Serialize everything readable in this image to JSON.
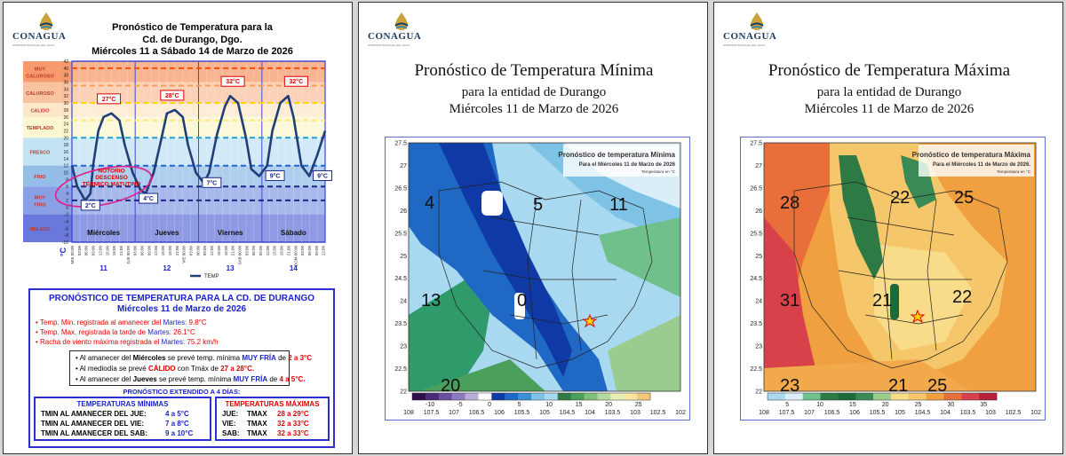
{
  "brand": {
    "name": "CONAGUA",
    "subtitle": "COMISIÓN NACIONAL DEL AGUA"
  },
  "panel1": {
    "title": [
      "Pronóstico  de Temperatura para la",
      "Cd. de Durango, Dgo.",
      "Miércoles 11 a Sábado 14 de Marzo de 2026"
    ],
    "categories": [
      {
        "label": "MUY CALUROSO",
        "color": "#f79b6e"
      },
      {
        "label": "CALUROSO",
        "color": "#f9c3a0"
      },
      {
        "label": "CALIDO",
        "color": "#fde7c8"
      },
      {
        "label": "TEMPLADO",
        "color": "#fbf7cf"
      },
      {
        "label": "FRESCO",
        "color": "#c3e3f5"
      },
      {
        "label": "FRIO",
        "color": "#94bde8"
      },
      {
        "label": "MUY FRIO",
        "color": "#8aa0e4"
      },
      {
        "label": "HELADO",
        "color": "#6a78db"
      }
    ],
    "annotation": "NOTORIO DESCENSO TÉRMICO MATUTINO",
    "legend": "TEMP",
    "legend_color": "#1f3f77",
    "chart_data": {
      "type": "line",
      "title": "Pronóstico  de Temperatura para la Cd. de Durango, Dgo.",
      "ylabel": "°C",
      "ylim": [
        -10,
        42
      ],
      "yticks": [
        42,
        40,
        38,
        36,
        34,
        32,
        30,
        28,
        26,
        24,
        22,
        20,
        18,
        16,
        14,
        12,
        10,
        8,
        6,
        4,
        2,
        0,
        -2,
        -4,
        -6,
        -8,
        -10
      ],
      "xlabels": [
        "MIE 00:00",
        "03:00",
        "06:00",
        "09:00",
        "12:00",
        "15:00",
        "18:00",
        "21:00",
        "JUE 00:00",
        "03:00",
        "06:00",
        "09:00",
        "12:00",
        "15:00",
        "18:00",
        "21:00",
        "VIE 00:00",
        "03:00",
        "06:00",
        "09:00",
        "12:00",
        "15:00",
        "18:00",
        "21:00",
        "SAB 00:00",
        "03:00",
        "06:00",
        "09:00",
        "12:00",
        "15:00",
        "18:00",
        "21:00",
        "DOM 00:00",
        "03:00",
        "06:00",
        "09:00",
        "12:00"
      ],
      "days": [
        {
          "name": "Miércoles",
          "num": "11"
        },
        {
          "name": "Jueves",
          "num": "12"
        },
        {
          "name": "Viernes",
          "num": "13"
        },
        {
          "name": "Sábado",
          "num": "14"
        }
      ],
      "series": [
        {
          "name": "TEMP",
          "x": [
            0,
            2,
            5,
            7,
            8,
            10,
            12,
            15,
            18,
            20,
            23,
            26,
            28,
            31,
            34,
            36,
            39,
            42,
            44,
            47,
            50,
            52,
            55,
            58,
            60,
            63,
            66,
            68,
            71,
            74,
            76,
            79,
            82,
            84,
            87,
            90,
            93,
            96
          ],
          "values": [
            12,
            6,
            2,
            4,
            12,
            22,
            26,
            27,
            25,
            18,
            10,
            5,
            4,
            10,
            20,
            27,
            28,
            26,
            18,
            10,
            7,
            10,
            21,
            29,
            32,
            30,
            20,
            11,
            9,
            12,
            22,
            30,
            32,
            26,
            12,
            9,
            15,
            22
          ]
        }
      ],
      "data_labels": [
        {
          "text": "27°C",
          "x": 14,
          "y": 27
        },
        {
          "text": "28°C",
          "x": 38,
          "y": 28
        },
        {
          "text": "32°C",
          "x": 61,
          "y": 32
        },
        {
          "text": "32°C",
          "x": 85,
          "y": 32
        },
        {
          "text": "2°C",
          "x": 7,
          "y": 2
        },
        {
          "text": "4°C",
          "x": 29,
          "y": 4
        },
        {
          "text": "7°C",
          "x": 53,
          "y": 7
        },
        {
          "text": "9°C",
          "x": 77,
          "y": 9
        },
        {
          "text": "9°C",
          "x": 95,
          "y": 9
        }
      ],
      "threshold_lines": [
        {
          "y": 40,
          "color": "#ff4c00"
        },
        {
          "y": 35,
          "color": "#ff9a50"
        },
        {
          "y": 30,
          "color": "#ffd400"
        },
        {
          "y": 25,
          "color": "#ffe87a"
        },
        {
          "y": 20,
          "color": "#1ea0d6"
        },
        {
          "y": 12,
          "color": "#1e63d6"
        },
        {
          "y": 6,
          "color": "#1b2a8a"
        },
        {
          "y": 2,
          "color": "#1b2a8a"
        }
      ]
    }
  },
  "summary": {
    "title": "PRONÓSTICO DE TEMPERATURA PARA LA CD. DE DURANGO",
    "date": "Miércoles 11 de Marzo de 2026",
    "bullets": [
      {
        "label": "Temp. Mín. registrada al amanecer del",
        "day": "Martes",
        "value": ": 9.8°C"
      },
      {
        "label": "Temp. Max. registrada la tarde de",
        "day": "Martes",
        "value": ": 26.1°C"
      },
      {
        "label": "Racha de viento máxima registrada el",
        "day": "Martes",
        "value": ": 75.2 km/h"
      }
    ],
    "fc": [
      {
        "a": "Al amanecer del ",
        "b": "Miércoles",
        "c": " se prevé temp. mínima ",
        "d": "MUY FRÍA",
        "e": " de ",
        "f": "2 a 3°C"
      },
      {
        "a": "Al mediodía se prevé ",
        "b": "",
        "c": "",
        "d": "CÁLIDO",
        "e": " con Tmáx de ",
        "f": "27 a 28°C."
      },
      {
        "a": "Al amanecer del ",
        "b": "Jueves",
        "c": " se prevé temp. mínima ",
        "d": "MUY FRÍA",
        "e": " de ",
        "f": "4 a 5°C."
      }
    ],
    "extended_title": "PRONÓSTICO EXTENDIDO A 4 DÍAS:",
    "min_title": "TEMPERATURAS MÍNIMAS",
    "max_title": "TEMPERATURAS MÁXIMAS",
    "mins": [
      {
        "label": "TMIN AL AMANECER DEL  JUE:",
        "value": "4 a 5°C"
      },
      {
        "label": "TMIN AL AMANECER DEL  VIE:",
        "value": "7 a 8°C"
      },
      {
        "label": "TMIN AL AMANECER DEL  SAB:",
        "value": "9 a 10°C"
      }
    ],
    "maxs": [
      {
        "day": "JUE:",
        "label": "TMAX",
        "value": "28 a 29°C"
      },
      {
        "day": "VIE:",
        "label": "TMAX",
        "value": "32 a 33°C"
      },
      {
        "day": "SAB:",
        "label": "TMAX",
        "value": "32 a 33°C"
      }
    ]
  },
  "panel2": {
    "title1": "Pronóstico de Temperatura Mínima",
    "title2": "para la entidad de Durango",
    "title3": "Miércoles 11 de Marzo de 2026",
    "chart_data": {
      "type": "heatmap",
      "title": "Pronóstico de temperatura Mínima",
      "subtitle": "Para el Miércoles 11 de Marzo de 2026",
      "unit": "Temperatura en °C",
      "xticks": [
        "108",
        "107.5",
        "107",
        "106.5",
        "106",
        "105.5",
        "105",
        "104.5",
        "104",
        "103.5",
        "103",
        "102.5",
        "102"
      ],
      "yticks": [
        "27.5",
        "27",
        "26.5",
        "26",
        "25.5",
        "25",
        "24.5",
        "24",
        "23.5",
        "23",
        "22.5",
        "22"
      ],
      "colorbar": [
        "-10",
        "-5",
        "0",
        "5",
        "10",
        "15",
        "20",
        "25"
      ],
      "contour_labels": [
        "4",
        "5",
        "11",
        "13",
        "0",
        "20"
      ]
    }
  },
  "panel3": {
    "title1": "Pronóstico de Temperatura Máxima",
    "title2": "para la entidad de Durango",
    "title3": "Miércoles 11 de Marzo de 2026",
    "chart_data": {
      "type": "heatmap",
      "title": "Pronóstico de temperatura Máxima",
      "subtitle": "Para el Miércoles 11 de Marzo de 2026.",
      "unit": "Temperatura en °C",
      "xticks": [
        "108",
        "107.5",
        "107",
        "106.5",
        "106",
        "105.5",
        "105",
        "104.5",
        "104",
        "103.5",
        "103",
        "102.5",
        "102"
      ],
      "yticks": [
        "27.5",
        "27",
        "26.5",
        "26",
        "25.5",
        "25",
        "24.5",
        "24",
        "23.5",
        "23",
        "22.5",
        "22"
      ],
      "colorbar": [
        "5",
        "10",
        "15",
        "20",
        "25",
        "30",
        "35"
      ],
      "contour_labels": [
        "28",
        "22",
        "25",
        "31",
        "21",
        "22",
        "23",
        "21",
        "25"
      ]
    }
  }
}
